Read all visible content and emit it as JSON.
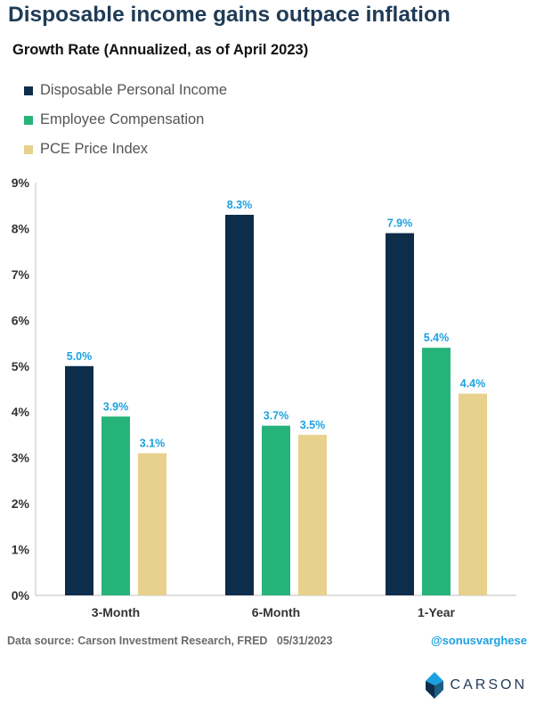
{
  "title": "Disposable income gains outpace inflation",
  "subtitle": "Growth Rate (Annualized, as of April 2023)",
  "footer": {
    "source": "Data source: Carson Investment Research, FRED   05/31/2023",
    "handle": "@sonusvarghese",
    "logo_text": "CARSON"
  },
  "colors": {
    "series": [
      "#0d2d4a",
      "#26b47a",
      "#e8d18d"
    ],
    "data_label": "#1ba1e2",
    "axis_text": "#333333",
    "gridline": "#bfbfbf"
  },
  "chart_data": {
    "type": "bar",
    "categories": [
      "3-Month",
      "6-Month",
      "1-Year"
    ],
    "series": [
      {
        "name": "Disposable Personal Income",
        "values": [
          5.0,
          8.3,
          7.9
        ]
      },
      {
        "name": "Employee Compensation",
        "values": [
          3.9,
          3.7,
          5.4
        ]
      },
      {
        "name": "PCE Price Index",
        "values": [
          3.1,
          3.5,
          4.4
        ]
      }
    ],
    "data_labels": [
      [
        "5.0%",
        "8.3%",
        "7.9%"
      ],
      [
        "3.9%",
        "3.7%",
        "5.4%"
      ],
      [
        "3.1%",
        "3.5%",
        "4.4%"
      ]
    ],
    "y_ticks": [
      "0%",
      "1%",
      "2%",
      "3%",
      "4%",
      "5%",
      "6%",
      "7%",
      "8%",
      "9%"
    ],
    "ylim": [
      0,
      9
    ],
    "title": "Disposable income gains outpace inflation",
    "subtitle": "Growth Rate (Annualized, as of April 2023)",
    "xlabel": "",
    "ylabel": "",
    "legend": "top-left",
    "grid": false
  }
}
